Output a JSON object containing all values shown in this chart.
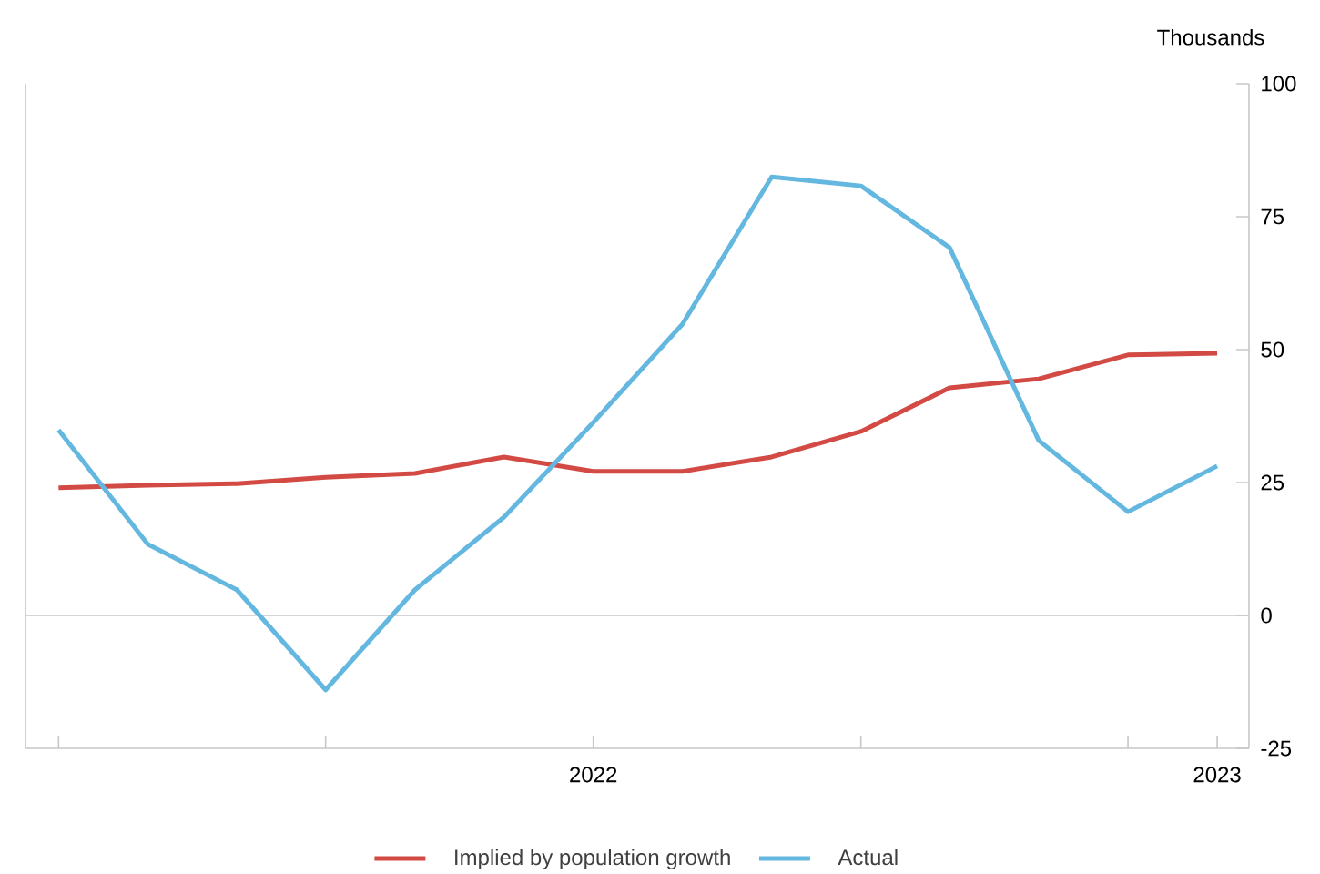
{
  "chart_data": {
    "type": "line",
    "ylabel": "Thousands",
    "x": [
      2021.143,
      2021.286,
      2021.429,
      2021.571,
      2021.714,
      2021.857,
      2022,
      2022.143,
      2022.286,
      2022.429,
      2022.571,
      2022.714,
      2022.857,
      2023
    ],
    "series": [
      {
        "name": "Implied by population growth",
        "color": "#d24a43",
        "values": [
          24.0,
          24.5,
          24.8,
          26.0,
          26.7,
          29.8,
          27.1,
          27.1,
          29.8,
          34.6,
          42.8,
          44.5,
          49.0,
          49.3
        ]
      },
      {
        "name": "Actual",
        "color": "#64b8e0",
        "values": [
          34.9,
          13.4,
          4.8,
          -14.0,
          4.8,
          18.5,
          36.3,
          54.8,
          82.5,
          80.8,
          69.2,
          32.9,
          19.5,
          28.1
        ]
      }
    ],
    "xlim": [
      2021.09,
      2023.051
    ],
    "ylim": [
      -25,
      100
    ],
    "yticks": [
      -25,
      0,
      25,
      50,
      75,
      100
    ],
    "xticks": [
      {
        "value": 2021.143,
        "label": null
      },
      {
        "value": 2021.571,
        "label": null
      },
      {
        "value": 2022,
        "label": "2022"
      },
      {
        "value": 2022.429,
        "label": null
      },
      {
        "value": 2022.857,
        "label": null
      },
      {
        "value": 2023,
        "label": "2023"
      }
    ],
    "ref_lines": [
      {
        "axis": "y",
        "value": 0,
        "color": "#c8c8c8"
      }
    ],
    "grid": false,
    "legend": "bottom",
    "marker": "none",
    "line_style": "solid"
  }
}
